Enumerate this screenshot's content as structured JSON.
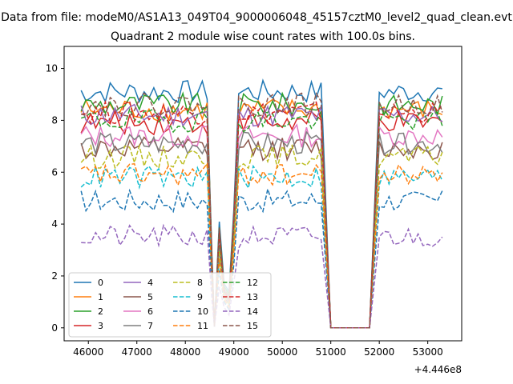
{
  "figure": {
    "suptitle": "Data from file: modeM0/AS1A13_049T04_9000006048_45157cztM0_level2_quad_clean.evt",
    "title": "Quadrant 2 module wise count rates with 100.0s bins.",
    "offset_label": "+4.446e8"
  },
  "chart_data": {
    "type": "line",
    "title": "Quadrant 2 module wise count rates with 100.0s bins.",
    "xlabel": "",
    "ylabel": "",
    "x_offset": 444600000,
    "xlim": [
      45500,
      53700
    ],
    "ylim": [
      -0.5,
      10.85
    ],
    "xticks": [
      46000,
      47000,
      48000,
      49000,
      50000,
      51000,
      52000,
      53000
    ],
    "yticks": [
      0,
      2,
      4,
      6,
      8,
      10
    ],
    "grid": false,
    "legend_position": "lower-left",
    "legend_columns": 4,
    "series": [
      {
        "name": "0",
        "color": "#1f77b4",
        "style": "solid",
        "level": 9.1,
        "drop_min": 1.4
      },
      {
        "name": "1",
        "color": "#ff7f0e",
        "style": "solid",
        "level": 8.4,
        "drop_min": 1.2
      },
      {
        "name": "2",
        "color": "#2ca02c",
        "style": "solid",
        "level": 8.6,
        "drop_min": 1.3
      },
      {
        "name": "3",
        "color": "#d62728",
        "style": "solid",
        "level": 7.9,
        "drop_min": 1.1
      },
      {
        "name": "4",
        "color": "#9467bd",
        "style": "solid",
        "level": 8.2,
        "drop_min": 1.2
      },
      {
        "name": "5",
        "color": "#8c564b",
        "style": "solid",
        "level": 6.9,
        "drop_min": 0.9
      },
      {
        "name": "6",
        "color": "#e377c2",
        "style": "solid",
        "level": 7.4,
        "drop_min": 1.0
      },
      {
        "name": "7",
        "color": "#7f7f7f",
        "style": "solid",
        "level": 7.1,
        "drop_min": 1.0
      },
      {
        "name": "8",
        "color": "#bcbd22",
        "style": "dashed",
        "level": 6.6,
        "drop_min": 0.9
      },
      {
        "name": "9",
        "color": "#17becf",
        "style": "dashed",
        "level": 5.8,
        "drop_min": 0.8
      },
      {
        "name": "10",
        "color": "#1f77b4",
        "style": "dashed",
        "level": 4.9,
        "drop_min": 0.7
      },
      {
        "name": "11",
        "color": "#ff7f0e",
        "style": "dashed",
        "level": 5.9,
        "drop_min": 0.8
      },
      {
        "name": "12",
        "color": "#2ca02c",
        "style": "dashed",
        "level": 8.0,
        "drop_min": 1.1
      },
      {
        "name": "13",
        "color": "#d62728",
        "style": "dashed",
        "level": 8.3,
        "drop_min": 1.1
      },
      {
        "name": "14",
        "color": "#9467bd",
        "style": "dashed",
        "level": 3.5,
        "drop_min": 0.5
      },
      {
        "name": "15",
        "color": "#8c564b",
        "style": "dashed",
        "level": 8.6,
        "drop_min": 1.2
      }
    ]
  }
}
